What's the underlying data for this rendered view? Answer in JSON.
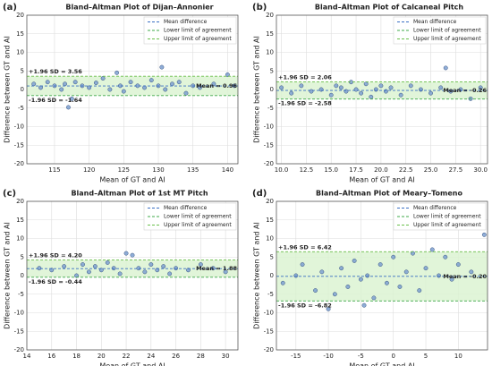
{
  "chart_data": [
    {
      "type": "scatter",
      "label": "(a)",
      "title": "Bland–Altman Plot of Dijan–Annonier",
      "xlabel": "Mean of GT and AI",
      "ylabel": "Difference between GT and AI",
      "x": [
        112,
        113,
        114,
        115,
        116,
        116.5,
        117,
        117.5,
        118,
        119,
        120,
        121,
        122,
        123,
        124,
        124.5,
        125,
        126,
        127,
        128,
        129,
        130,
        130.5,
        131,
        132,
        133,
        134,
        135,
        136,
        138,
        140,
        141
      ],
      "values": [
        1.5,
        0.5,
        2,
        1,
        0,
        1.5,
        -4.8,
        -2.5,
        2,
        1,
        0.5,
        1.8,
        3,
        0,
        4.5,
        1,
        -0.5,
        2,
        1,
        0.5,
        2.5,
        1,
        6,
        0,
        1.5,
        2,
        -1,
        1,
        0.5,
        1.5,
        4,
        1
      ],
      "color": "#7b9fd0",
      "band_color": "#daf2d0",
      "grid": true,
      "xlim": [
        111,
        141.5
      ],
      "xticks": [
        115,
        120,
        125,
        130,
        135,
        140
      ],
      "ylim": [
        -20,
        20
      ],
      "yticks": [
        -20,
        -15,
        -10,
        -5,
        0,
        5,
        10,
        15,
        20
      ],
      "reference_lines": [
        {
          "name": "Mean difference",
          "value": 0.96,
          "label": "Mean = 0.96",
          "color": "#3a6fc4"
        },
        {
          "name": "Lower limit of agreement",
          "value": -1.64,
          "label": "-1.96 SD = -1.64",
          "color": "#3fa84a"
        },
        {
          "name": "Upper limit of agreement",
          "value": 3.56,
          "label": "+1.96 SD = 3.56",
          "color": "#6abf4b"
        }
      ]
    },
    {
      "type": "scatter",
      "label": "(b)",
      "title": "Bland–Altman Plot of Calcaneal Pitch",
      "xlabel": "Mean of GT and AI",
      "ylabel": "Difference between GT and AI",
      "x": [
        10,
        11,
        12,
        13,
        14,
        15,
        15.5,
        16,
        16.5,
        17,
        17.5,
        18,
        18.5,
        19,
        19.5,
        20,
        20.5,
        21,
        22,
        23,
        24,
        25,
        26,
        26.5,
        27,
        28,
        29,
        30
      ],
      "values": [
        0.5,
        -1,
        1,
        -0.5,
        0,
        -1.5,
        1,
        0.5,
        -0.5,
        2,
        0,
        -1,
        1.5,
        -2,
        0,
        1,
        -0.5,
        0.5,
        -1.5,
        1,
        0,
        -1,
        0.5,
        5.8,
        -0.5,
        0,
        -2.5,
        0.5
      ],
      "color": "#7b9fd0",
      "band_color": "#daf2d0",
      "grid": true,
      "xlim": [
        9.5,
        30.7
      ],
      "xticks": [
        {
          "value": 10,
          "label": "10.0"
        },
        {
          "value": 12.5,
          "label": "12.5"
        },
        {
          "value": 15,
          "label": "15.0"
        },
        {
          "value": 17.5,
          "label": "17.5"
        },
        {
          "value": 20,
          "label": "20.0"
        },
        {
          "value": 22.5,
          "label": "22.5"
        },
        {
          "value": 25,
          "label": "25.0"
        },
        {
          "value": 27.5,
          "label": "27.5"
        },
        {
          "value": 30,
          "label": "30.0"
        }
      ],
      "ylim": [
        -20,
        20
      ],
      "yticks": [
        -20,
        -15,
        -10,
        -5,
        0,
        5,
        10,
        15,
        20
      ],
      "reference_lines": [
        {
          "name": "Mean difference",
          "value": -0.26,
          "label": "Mean = -0.26",
          "color": "#3a6fc4"
        },
        {
          "name": "Lower limit of agreement",
          "value": -2.58,
          "label": "-1.96 SD = -2.58",
          "color": "#3fa84a"
        },
        {
          "name": "Upper limit of agreement",
          "value": 2.06,
          "label": "+1.96 SD = 2.06",
          "color": "#6abf4b"
        }
      ]
    },
    {
      "type": "scatter",
      "label": "(c)",
      "title": "Bland–Altman Plot of 1st MT Pitch",
      "xlabel": "Mean of GT and AI",
      "ylabel": "Difference between GT and AI",
      "x": [
        15,
        16,
        17,
        18,
        18.5,
        19,
        19.5,
        20,
        20.5,
        21,
        21.5,
        22,
        22.5,
        23,
        23.5,
        24,
        24.5,
        25,
        25.5,
        26,
        27,
        28,
        29,
        30
      ],
      "values": [
        2,
        1.5,
        2.5,
        0,
        3,
        1,
        2.5,
        1.5,
        3.5,
        2,
        0.5,
        6,
        5.5,
        2,
        1,
        3,
        1.5,
        2.5,
        0.5,
        2,
        1.5,
        3,
        2,
        1
      ],
      "color": "#7b9fd0",
      "band_color": "#daf2d0",
      "grid": true,
      "xlim": [
        14,
        31
      ],
      "xticks": [
        14,
        16,
        18,
        20,
        22,
        24,
        26,
        28,
        30
      ],
      "ylim": [
        -20,
        20
      ],
      "yticks": [
        -20,
        -15,
        -10,
        -5,
        0,
        5,
        10,
        15,
        20
      ],
      "reference_lines": [
        {
          "name": "Mean difference",
          "value": 1.88,
          "label": "Mean = 1.88",
          "color": "#3a6fc4"
        },
        {
          "name": "Lower limit of agreement",
          "value": -0.44,
          "label": "-1.96 SD = -0.44",
          "color": "#3fa84a"
        },
        {
          "name": "Upper limit of agreement",
          "value": 4.2,
          "label": "+1.96 SD = 4.20",
          "color": "#6abf4b"
        }
      ]
    },
    {
      "type": "scatter",
      "label": "(d)",
      "title": "Bland–Altman Plot of Meary–Tomeno",
      "xlabel": "Mean of GT and AI",
      "ylabel": "Difference between GT and AI",
      "x": [
        -17,
        -15,
        -14,
        -12,
        -11,
        -10,
        -9,
        -8,
        -7,
        -6,
        -5,
        -4.5,
        -4,
        -3,
        -2,
        -1,
        0,
        1,
        2,
        3,
        4,
        5,
        6,
        7,
        8,
        9,
        10,
        12,
        14
      ],
      "values": [
        -2,
        0,
        3,
        -4,
        1,
        -9,
        -5,
        2,
        -3,
        4,
        -1,
        -8,
        0,
        -6,
        3,
        -2,
        5,
        -3,
        1,
        6,
        -4,
        2,
        7,
        0,
        5,
        -1,
        3,
        1,
        11
      ],
      "color": "#7b9fd0",
      "band_color": "#daf2d0",
      "grid": true,
      "xlim": [
        -18,
        14.5
      ],
      "xticks": [
        -15,
        -10,
        -5,
        0,
        5,
        10
      ],
      "ylim": [
        -20,
        20
      ],
      "yticks": [
        -20,
        -15,
        -10,
        -5,
        0,
        5,
        10,
        15,
        20
      ],
      "reference_lines": [
        {
          "name": "Mean difference",
          "value": -0.2,
          "label": "Mean = -0.20",
          "color": "#3a6fc4"
        },
        {
          "name": "Lower limit of agreement",
          "value": -6.82,
          "label": "-1.96 SD = -6.82",
          "color": "#3fa84a"
        },
        {
          "name": "Upper limit of agreement",
          "value": 6.42,
          "label": "+1.96 SD = 6.42",
          "color": "#6abf4b"
        }
      ]
    }
  ]
}
